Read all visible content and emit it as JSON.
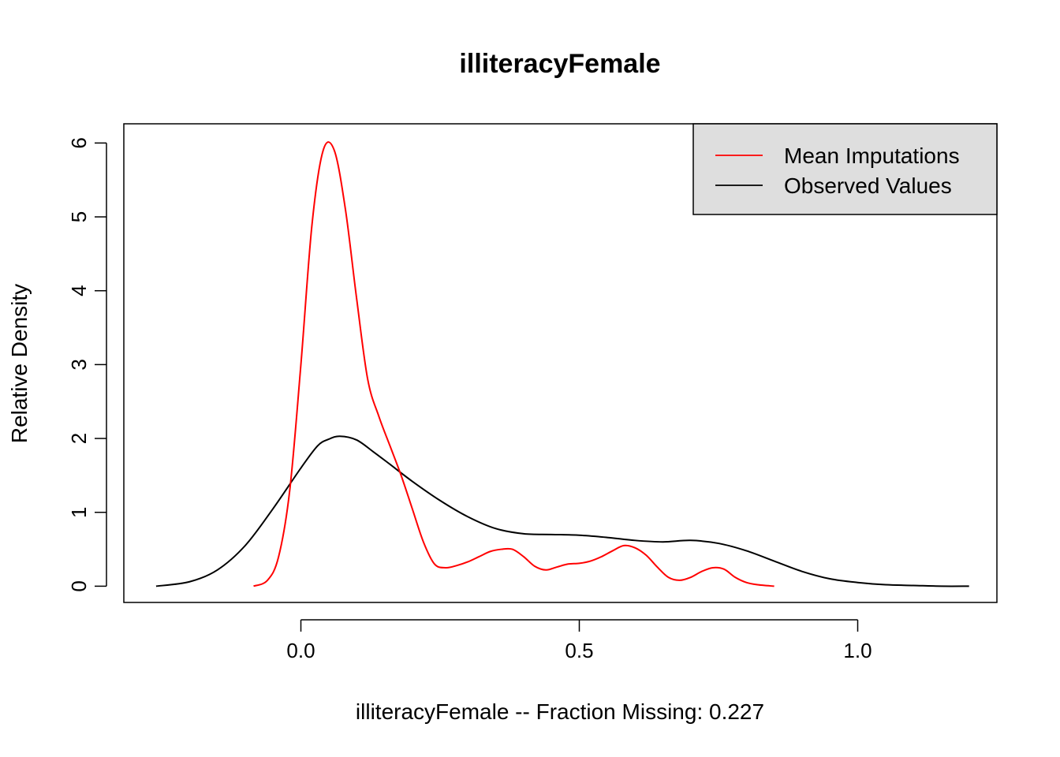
{
  "chart_data": {
    "type": "line",
    "title": "illiteracyFemale",
    "xlabel": "illiteracyFemale   --  Fraction Missing: 0.227",
    "ylabel": "Relative Density",
    "xlim": [
      -0.318,
      1.25
    ],
    "ylim": [
      -0.22,
      6.26
    ],
    "x_ticks": [
      0.0,
      0.5,
      1.0
    ],
    "x_tick_labels": [
      "0.0",
      "0.5",
      "1.0"
    ],
    "y_ticks": [
      0,
      1,
      2,
      3,
      4,
      5,
      6
    ],
    "y_tick_labels": [
      "0",
      "1",
      "2",
      "3",
      "4",
      "5",
      "6"
    ],
    "grid": false,
    "legend_position": "top-right",
    "legend_background": "#dedede",
    "series": [
      {
        "name": "Mean Imputations",
        "color": "#ff0000",
        "x": [
          -0.085,
          -0.06,
          -0.04,
          -0.02,
          0.0,
          0.02,
          0.04,
          0.06,
          0.08,
          0.1,
          0.12,
          0.14,
          0.16,
          0.18,
          0.2,
          0.22,
          0.24,
          0.26,
          0.28,
          0.3,
          0.32,
          0.34,
          0.36,
          0.38,
          0.4,
          0.42,
          0.44,
          0.46,
          0.48,
          0.5,
          0.52,
          0.54,
          0.56,
          0.58,
          0.6,
          0.62,
          0.64,
          0.66,
          0.68,
          0.7,
          0.72,
          0.74,
          0.76,
          0.78,
          0.8,
          0.82,
          0.85
        ],
        "y": [
          0.0,
          0.08,
          0.4,
          1.3,
          3.0,
          4.9,
          5.9,
          5.9,
          5.1,
          3.9,
          2.8,
          2.3,
          1.9,
          1.5,
          1.05,
          0.6,
          0.3,
          0.25,
          0.28,
          0.33,
          0.4,
          0.47,
          0.5,
          0.5,
          0.4,
          0.27,
          0.22,
          0.26,
          0.3,
          0.31,
          0.34,
          0.4,
          0.48,
          0.55,
          0.52,
          0.42,
          0.26,
          0.12,
          0.08,
          0.12,
          0.2,
          0.25,
          0.23,
          0.12,
          0.05,
          0.02,
          0.0
        ]
      },
      {
        "name": "Observed Values",
        "color": "#000000",
        "x": [
          -0.26,
          -0.2,
          -0.15,
          -0.1,
          -0.05,
          0.0,
          0.03,
          0.05,
          0.07,
          0.1,
          0.13,
          0.16,
          0.2,
          0.25,
          0.3,
          0.35,
          0.4,
          0.45,
          0.5,
          0.55,
          0.6,
          0.65,
          0.7,
          0.75,
          0.8,
          0.85,
          0.9,
          0.95,
          1.0,
          1.05,
          1.1,
          1.15,
          1.2
        ],
        "y": [
          0.0,
          0.06,
          0.22,
          0.55,
          1.05,
          1.6,
          1.9,
          1.99,
          2.03,
          1.98,
          1.82,
          1.65,
          1.42,
          1.16,
          0.94,
          0.78,
          0.71,
          0.7,
          0.69,
          0.66,
          0.62,
          0.6,
          0.62,
          0.58,
          0.48,
          0.34,
          0.2,
          0.1,
          0.05,
          0.02,
          0.01,
          0.0,
          0.0
        ]
      }
    ]
  }
}
